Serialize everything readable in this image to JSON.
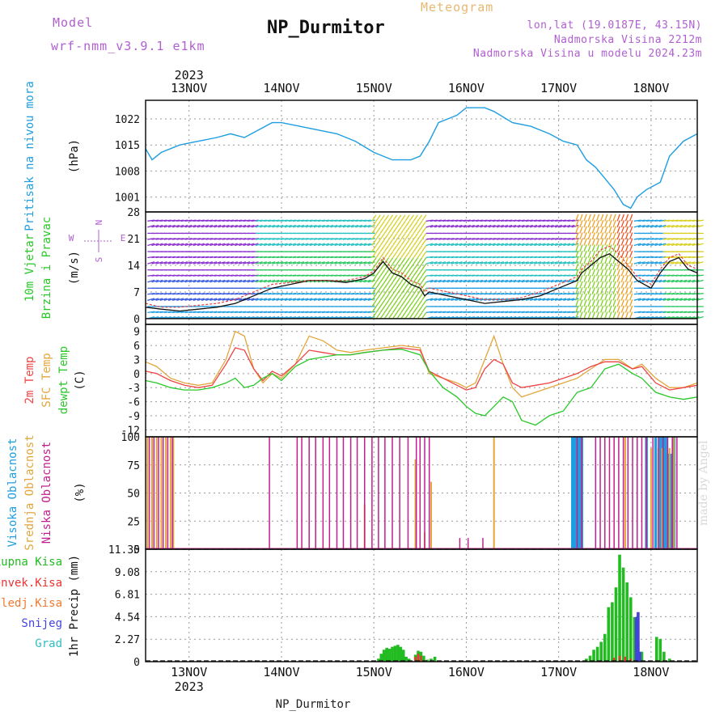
{
  "header": {
    "model_label": "Model",
    "model_name": "wrf-nmm_v3.9.1 e1km",
    "location": "NP_Durmitor",
    "meteogram_label": "Meteogram",
    "coords": "lon,lat (19.0187E, 43.15N)",
    "altitude": "Nadmorska Visina 2212m",
    "model_altitude": "Nadmorska Visina u modelu 2024.23m",
    "year_top": "2023",
    "year_bottom": "2023",
    "footer_location": "NP_Durmitor",
    "signature": "made by Angel"
  },
  "colors": {
    "pressure": "#1e9ee0",
    "sfc_temp": "#e2a63c",
    "temp_2m": "#ee4444",
    "dewpoint": "#28c828",
    "high_cloud": "#1e9ee0",
    "mid_cloud": "#e2a63c",
    "low_cloud": "#c0208e",
    "total_precip": "#22bb22",
    "conv_precip": "#ee3333",
    "frozen_precip": "#f07a30",
    "snow": "#4444dd",
    "hail": "#30c0c0",
    "label_purple": "#b05fd0",
    "grid": "#999999"
  },
  "chart_data": [
    {
      "type": "line",
      "panel": "pressure",
      "title": "Pritisak na nivou mora",
      "ylabel": "(hPa)",
      "yticks": [
        1001,
        1008,
        1015,
        1022
      ],
      "ylim": [
        997,
        1027
      ],
      "x_day_labels": [
        "13NOV",
        "14NOV",
        "15NOV",
        "16NOV",
        "17NOV",
        "18NOV"
      ],
      "xlim_days": [
        12.53,
        18.5
      ],
      "series": [
        {
          "x": [
            12.53,
            12.6,
            12.7,
            12.9,
            13.1,
            13.3,
            13.45,
            13.6,
            13.75,
            13.9,
            14.0,
            14.2,
            14.4,
            14.6,
            14.8,
            15.0,
            15.2,
            15.4,
            15.5,
            15.6,
            15.7,
            15.8,
            15.9,
            16.0,
            16.1,
            16.2,
            16.3,
            16.5,
            16.7,
            16.9,
            17.05,
            17.2,
            17.3,
            17.4,
            17.5,
            17.6,
            17.7,
            17.78,
            17.85,
            17.95,
            18.1,
            18.2,
            18.35,
            18.5
          ],
          "y": [
            1014,
            1011,
            1013,
            1015,
            1016,
            1017,
            1018,
            1017,
            1019,
            1021,
            1021,
            1020,
            1019,
            1018,
            1016,
            1013,
            1011,
            1011,
            1012,
            1016,
            1021,
            1022,
            1023,
            1025,
            1025,
            1025,
            1024,
            1021,
            1020,
            1018,
            1016,
            1015,
            1011,
            1009,
            1006,
            1003,
            999,
            998,
            1001,
            1003,
            1005,
            1012,
            1016,
            1018
          ]
        }
      ]
    },
    {
      "type": "line",
      "panel": "wind",
      "title": "10m Vjetar",
      "subtitle": "Brzina i Pravac",
      "ylabel": "(m/s)",
      "yticks": [
        0,
        7,
        14,
        21,
        28
      ],
      "ylim": [
        -1.5,
        28
      ],
      "legend": [
        "W",
        "S",
        "N",
        "E"
      ],
      "series": [
        {
          "x": [
            12.53,
            12.7,
            12.9,
            13.1,
            13.3,
            13.5,
            13.7,
            13.9,
            14.1,
            14.3,
            14.5,
            14.7,
            14.9,
            15.0,
            15.1,
            15.2,
            15.3,
            15.4,
            15.5,
            15.55,
            15.6,
            15.8,
            16.0,
            16.2,
            16.4,
            16.6,
            16.8,
            17.0,
            17.2,
            17.25,
            17.35,
            17.45,
            17.55,
            17.65,
            17.75,
            17.85,
            18.0,
            18.1,
            18.2,
            18.3,
            18.4,
            18.5
          ],
          "y": [
            3,
            2.5,
            2,
            2.5,
            3,
            4,
            6,
            8,
            9,
            10,
            10,
            9.5,
            10.5,
            12,
            15,
            12,
            11,
            9,
            8,
            6,
            7,
            6,
            5,
            4,
            4.5,
            5,
            6,
            8,
            10,
            12,
            14,
            16,
            17,
            15,
            13,
            10,
            8,
            12,
            15,
            16,
            13,
            12
          ]
        },
        {
          "x": [
            12.53,
            12.7,
            12.9,
            13.1,
            13.3,
            13.5,
            13.7,
            13.9,
            14.1,
            14.3,
            14.5,
            14.7,
            14.9,
            15.0,
            15.1,
            15.2,
            15.3,
            15.4,
            15.5,
            15.55,
            15.6,
            15.8,
            16.0,
            16.2,
            16.4,
            16.6,
            16.8,
            17.0,
            17.2,
            17.25,
            17.35,
            17.45,
            17.55,
            17.65,
            17.75,
            17.85,
            18.0,
            18.1,
            18.2,
            18.3,
            18.4,
            18.5
          ],
          "y": [
            4,
            3,
            3,
            3.5,
            4,
            5,
            7,
            9,
            9.5,
            10,
            10,
            10,
            11,
            12.5,
            16,
            13,
            12,
            10,
            9,
            7,
            8,
            7,
            6,
            5,
            5,
            5.5,
            7,
            9,
            11,
            13,
            15,
            18,
            19,
            17,
            14,
            11,
            9,
            13,
            16,
            17,
            14,
            13
          ]
        }
      ]
    },
    {
      "type": "line",
      "panel": "temperature",
      "title_lines": [
        "2m Temp",
        "SFC Temp",
        "dewpt Temp"
      ],
      "ylabel": "(C)",
      "yticks": [
        -12,
        -9,
        -6,
        -3,
        0,
        3,
        6,
        9
      ],
      "ylim": [
        -13.5,
        10.5
      ],
      "series": [
        {
          "name": "SFC Temp",
          "x": [
            12.53,
            12.65,
            12.8,
            12.95,
            13.1,
            13.25,
            13.4,
            13.5,
            13.6,
            13.7,
            13.8,
            13.9,
            14.0,
            14.15,
            14.3,
            14.45,
            14.6,
            14.75,
            14.9,
            15.1,
            15.3,
            15.5,
            15.6,
            15.75,
            15.9,
            16.0,
            16.1,
            16.2,
            16.3,
            16.4,
            16.5,
            16.6,
            16.75,
            16.9,
            17.05,
            17.2,
            17.35,
            17.5,
            17.65,
            17.8,
            17.9,
            18.05,
            18.2,
            18.35,
            18.5
          ],
          "y": [
            2.5,
            1.5,
            -1,
            -2,
            -2.5,
            -2,
            3,
            9,
            8,
            1,
            -2,
            0,
            -1,
            2,
            8,
            7,
            5,
            4.5,
            5,
            5.5,
            6,
            5.5,
            0,
            -1,
            -2,
            -3,
            -2,
            3,
            8,
            2,
            -3,
            -5,
            -4,
            -3,
            -2,
            -1,
            1,
            3,
            3,
            1,
            2,
            -1,
            -3,
            -3,
            -2
          ]
        },
        {
          "name": "2m Temp",
          "x": [
            12.53,
            12.65,
            12.8,
            12.95,
            13.1,
            13.25,
            13.4,
            13.5,
            13.6,
            13.7,
            13.8,
            13.9,
            14.0,
            14.15,
            14.3,
            14.45,
            14.6,
            14.75,
            14.9,
            15.1,
            15.3,
            15.5,
            15.6,
            15.75,
            15.9,
            16.0,
            16.1,
            16.2,
            16.3,
            16.4,
            16.5,
            16.6,
            16.75,
            16.9,
            17.05,
            17.2,
            17.35,
            17.5,
            17.65,
            17.8,
            17.9,
            18.05,
            18.2,
            18.35,
            18.5
          ],
          "y": [
            0.5,
            0,
            -1.5,
            -2.5,
            -3,
            -2.5,
            2,
            5.5,
            5,
            1,
            -1.5,
            0.5,
            -0.5,
            2,
            5,
            4.5,
            4,
            4,
            4.5,
            5,
            5.5,
            5,
            0.5,
            -1,
            -2.5,
            -3.5,
            -3,
            1,
            3,
            2,
            -2,
            -3,
            -2.5,
            -2,
            -1,
            0,
            1.5,
            2.5,
            2.5,
            1,
            1.5,
            -2,
            -3.5,
            -3,
            -2.5
          ]
        },
        {
          "name": "dewpt Temp",
          "x": [
            12.53,
            12.65,
            12.8,
            12.95,
            13.1,
            13.25,
            13.4,
            13.5,
            13.6,
            13.7,
            13.8,
            13.9,
            14.0,
            14.15,
            14.3,
            14.45,
            14.6,
            14.75,
            14.9,
            15.1,
            15.3,
            15.5,
            15.6,
            15.75,
            15.9,
            16.0,
            16.1,
            16.2,
            16.3,
            16.4,
            16.5,
            16.6,
            16.75,
            16.9,
            17.05,
            17.2,
            17.35,
            17.5,
            17.65,
            17.8,
            17.9,
            18.05,
            18.2,
            18.35,
            18.5
          ],
          "y": [
            -1.5,
            -2,
            -3,
            -3.5,
            -3.5,
            -3,
            -2,
            -1,
            -3,
            -2.5,
            -1,
            0,
            -1.5,
            1.5,
            3,
            3.5,
            4,
            4,
            4.5,
            5,
            5.2,
            4,
            0.5,
            -3,
            -5,
            -7,
            -8.5,
            -9,
            -7,
            -5,
            -6,
            -10,
            -11,
            -9,
            -8,
            -4,
            -3,
            1,
            2,
            0,
            -1,
            -4,
            -5,
            -5.5,
            -5
          ]
        }
      ]
    },
    {
      "type": "bar",
      "panel": "clouds",
      "title_lines": [
        "Visoka Oblacnost",
        "Srednja Oblacnost",
        "Niska Oblacnost"
      ],
      "ylabel": "(%)",
      "yticks": [
        0,
        25,
        50,
        75,
        100
      ],
      "ylim": [
        0,
        100
      ],
      "series": [
        {
          "name": "Visoka Oblacnost",
          "x": [
            17.15,
            17.17,
            17.19,
            17.21,
            17.23,
            17.25,
            17.95,
            18.05,
            18.1,
            18.13,
            18.16,
            18.19,
            18.22,
            18.25
          ],
          "values": [
            100,
            100,
            100,
            100,
            100,
            100,
            100,
            100,
            100,
            100,
            100,
            85,
            85,
            100
          ]
        },
        {
          "name": "Srednja Oblacnost",
          "x": [
            12.55,
            12.6,
            12.65,
            12.7,
            12.75,
            12.8,
            12.83,
            14.9,
            15.45,
            15.55,
            15.62,
            16.3,
            17.72,
            18.0,
            18.08,
            18.12,
            18.2,
            18.25
          ],
          "values": [
            100,
            100,
            100,
            100,
            100,
            100,
            100,
            40,
            80,
            15,
            60,
            100,
            100,
            90,
            90,
            90,
            90,
            100
          ]
        },
        {
          "name": "Niska Oblacnost",
          "x": [
            12.57,
            12.62,
            12.67,
            12.72,
            12.77,
            12.82,
            13.87,
            14.17,
            14.22,
            14.3,
            14.37,
            14.45,
            14.52,
            14.6,
            14.67,
            14.75,
            14.82,
            14.9,
            14.98,
            15.05,
            15.12,
            15.2,
            15.28,
            15.37,
            15.46,
            15.5,
            15.55,
            15.6,
            15.93,
            16.02,
            16.18,
            17.2,
            17.25,
            17.4,
            17.45,
            17.5,
            17.55,
            17.6,
            17.65,
            17.7,
            17.75,
            17.8,
            17.85,
            17.9,
            17.95,
            18.02,
            18.08,
            18.13,
            18.18,
            18.23,
            18.28
          ],
          "values": [
            100,
            100,
            100,
            100,
            100,
            100,
            100,
            100,
            100,
            100,
            100,
            100,
            100,
            100,
            100,
            100,
            100,
            100,
            100,
            100,
            100,
            100,
            100,
            100,
            100,
            100,
            100,
            100,
            10,
            10,
            10,
            100,
            100,
            100,
            100,
            100,
            100,
            100,
            100,
            100,
            100,
            100,
            100,
            100,
            100,
            100,
            100,
            100,
            100,
            100,
            100
          ]
        }
      ]
    },
    {
      "type": "bar",
      "panel": "precip",
      "title_lines": [
        "Ukupna Kisa",
        "Konvek.Kisa",
        "Zaledj.Kisa",
        "Snijeg",
        "Grad"
      ],
      "ylabel": "1hr Precip (mm)",
      "yticks": [
        0,
        2.27,
        4.54,
        6.81,
        9.08,
        11.35
      ],
      "ylim": [
        0,
        11.35
      ],
      "series": [
        {
          "name": "Ukupna Kisa",
          "x": [
            15.05,
            15.08,
            15.11,
            15.14,
            15.17,
            15.2,
            15.23,
            15.26,
            15.29,
            15.32,
            15.35,
            15.38,
            15.45,
            15.48,
            15.51,
            15.54,
            15.58,
            15.62,
            15.66,
            17.3,
            17.34,
            17.38,
            17.42,
            17.46,
            17.5,
            17.54,
            17.58,
            17.62,
            17.66,
            17.7,
            17.74,
            17.78,
            17.82,
            17.86,
            17.9,
            18.06,
            18.1,
            18.14,
            18.2
          ],
          "values": [
            0.3,
            0.8,
            1.2,
            1.4,
            1.3,
            1.5,
            1.6,
            1.7,
            1.5,
            1.2,
            0.5,
            0.3,
            0.7,
            1.1,
            1.0,
            0.6,
            0.2,
            0.3,
            0.5,
            0.3,
            0.6,
            1.2,
            1.5,
            2.0,
            2.8,
            5.5,
            6.0,
            7.5,
            10.8,
            9.5,
            8.0,
            6.5,
            4.5,
            2.0,
            1.0,
            2.5,
            2.3,
            1.0,
            0.3
          ]
        },
        {
          "name": "Konvek.Kisa",
          "x": [
            15.45,
            15.48,
            15.51,
            17.6,
            17.66,
            17.72,
            17.78
          ],
          "values": [
            0.5,
            0.8,
            0.6,
            0.4,
            0.6,
            0.5,
            0.3
          ]
        },
        {
          "name": "Snijeg",
          "x": [
            17.84,
            17.86,
            17.88
          ],
          "values": [
            4.5,
            5.0,
            1.0
          ]
        }
      ]
    }
  ]
}
